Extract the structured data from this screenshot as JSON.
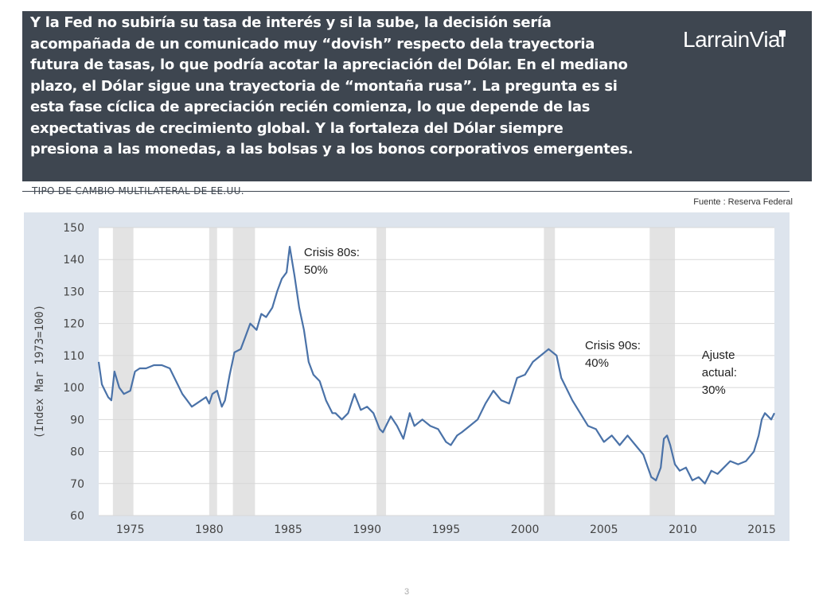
{
  "header": {
    "text": "Y la Fed no subiría su tasa de interés y si la sube, la decisión sería acompañada de un comunicado muy “dovish” respecto dela trayectoria futura de tasas, lo que podría acotar la apreciación del Dólar. En el mediano plazo, el Dólar sigue una trayectoria de “montaña rusa”. La pregunta es si esta fase cíclica de apreciación recién comienza, lo que depende de las expectativas de crecimiento global. Y la fortaleza del Dólar siempre presiona a las monedas, a las bolsas y a los bonos corporativos emergentes.",
    "logo": "LarrainVial",
    "bg_color": "#3e4650"
  },
  "section_title": "TIPO DE CAMBIO MULTILATERAL DE EE.UU.",
  "source": "Fuente : Reserva Federal",
  "page_number": "3",
  "chart_data": {
    "type": "line",
    "ylabel": "(Index Mar 1973=100)",
    "xlim": [
      1973,
      2015.8
    ],
    "ylim": [
      60,
      150
    ],
    "y_ticks": [
      60,
      70,
      80,
      90,
      100,
      110,
      120,
      130,
      140,
      150
    ],
    "x_ticks": [
      1975,
      1980,
      1985,
      1990,
      1995,
      2000,
      2005,
      2010,
      2015
    ],
    "grid": true,
    "line_color": "#4a72a8",
    "recessions": [
      [
        1973.9,
        1975.2
      ],
      [
        1980.0,
        1980.5
      ],
      [
        1981.5,
        1982.9
      ],
      [
        1990.6,
        1991.2
      ],
      [
        2001.2,
        2001.9
      ],
      [
        2007.9,
        2009.5
      ]
    ],
    "series": [
      {
        "x": [
          1973.0,
          1973.2,
          1973.4,
          1973.6,
          1973.8,
          1974.0,
          1974.3,
          1974.6,
          1975.0,
          1975.3,
          1975.6,
          1976.0,
          1976.5,
          1977.0,
          1977.5,
          1978.0,
          1978.3,
          1978.6,
          1978.9,
          1979.2,
          1979.5,
          1979.8,
          1980.0,
          1980.2,
          1980.5,
          1980.8,
          1981.0,
          1981.3,
          1981.6,
          1982.0,
          1982.3,
          1982.6,
          1983.0,
          1983.3,
          1983.6,
          1984.0,
          1984.3,
          1984.6,
          1984.9,
          1985.1,
          1985.4,
          1985.7,
          1986.0,
          1986.3,
          1986.6,
          1987.0,
          1987.4,
          1987.8,
          1988.0,
          1988.4,
          1988.8,
          1989.2,
          1989.6,
          1990.0,
          1990.4,
          1990.8,
          1991.0,
          1991.2,
          1991.5,
          1991.9,
          1992.3,
          1992.7,
          1993.0,
          1993.5,
          1994.0,
          1994.5,
          1995.0,
          1995.3,
          1995.7,
          1996.0,
          1996.5,
          1997.0,
          1997.5,
          1998.0,
          1998.5,
          1999.0,
          1999.5,
          2000.0,
          2000.5,
          2001.0,
          2001.5,
          2002.0,
          2002.3,
          2002.6,
          2003.0,
          2003.5,
          2004.0,
          2004.5,
          2005.0,
          2005.5,
          2006.0,
          2006.5,
          2007.0,
          2007.5,
          2008.0,
          2008.3,
          2008.6,
          2008.8,
          2009.0,
          2009.2,
          2009.5,
          2009.8,
          2010.2,
          2010.6,
          2011.0,
          2011.4,
          2011.8,
          2012.2,
          2012.6,
          2013.0,
          2013.5,
          2014.0,
          2014.5,
          2014.8,
          2015.0,
          2015.2,
          2015.4,
          2015.6,
          2015.8
        ],
        "y": [
          108,
          101,
          99,
          97,
          96,
          105,
          100,
          98,
          99,
          105,
          106,
          106,
          107,
          107,
          106,
          101,
          98,
          96,
          94,
          95,
          96,
          97,
          95,
          98,
          99,
          94,
          96,
          104,
          111,
          112,
          116,
          120,
          118,
          123,
          122,
          125,
          130,
          134,
          136,
          144,
          135,
          125,
          118,
          108,
          104,
          102,
          96,
          92,
          92,
          90,
          92,
          98,
          93,
          94,
          92,
          87,
          86,
          88,
          91,
          88,
          84,
          92,
          88,
          90,
          88,
          87,
          83,
          82,
          85,
          86,
          88,
          90,
          95,
          99,
          96,
          95,
          103,
          104,
          108,
          110,
          112,
          110,
          103,
          100,
          96,
          92,
          88,
          87,
          83,
          85,
          82,
          85,
          82,
          79,
          72,
          71,
          75,
          84,
          85,
          82,
          76,
          74,
          75,
          71,
          72,
          70,
          74,
          73,
          75,
          77,
          76,
          77,
          80,
          85,
          90,
          92,
          91,
          90,
          92
        ]
      }
    ],
    "annotations": [
      {
        "text": "Crisis 80s:\n50%",
        "x": 1986.0,
        "y": 141
      },
      {
        "text": "Crisis 90s:\n40%",
        "x": 2003.8,
        "y": 112
      },
      {
        "text": "Ajuste\nactual:\n30%",
        "x": 2011.2,
        "y": 109
      }
    ]
  }
}
